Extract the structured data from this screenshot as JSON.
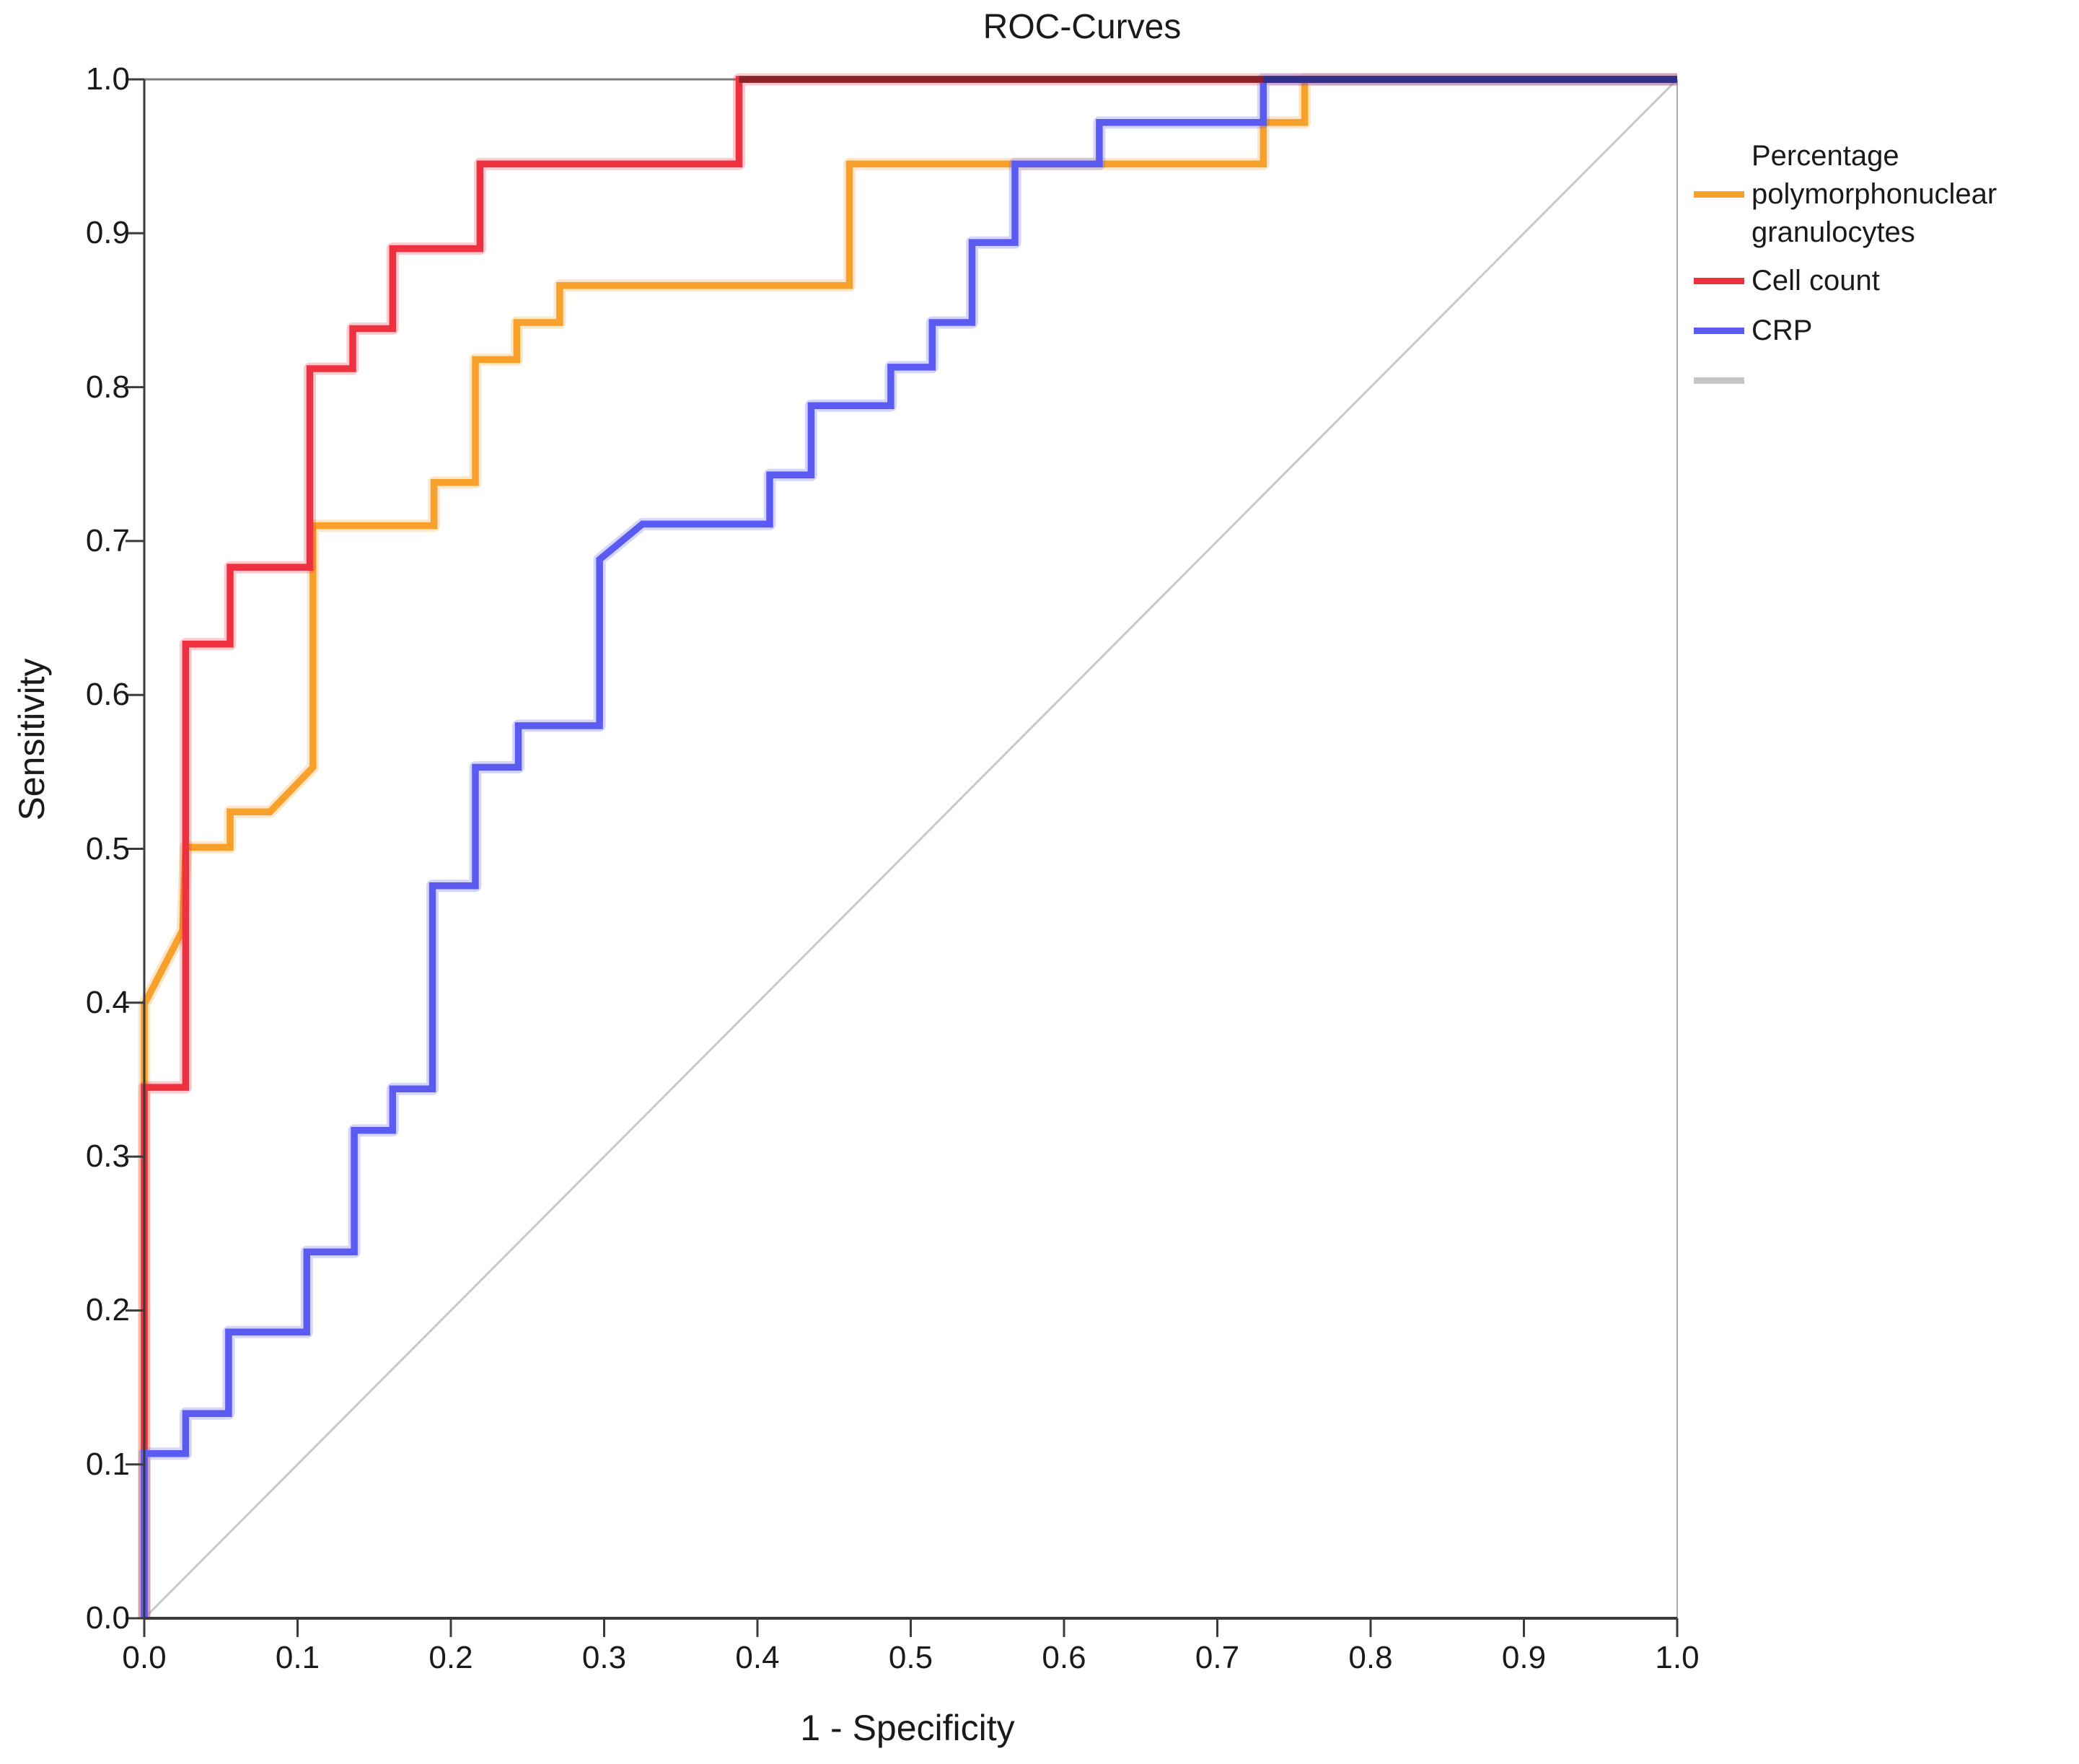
{
  "title": "ROC-Curves",
  "x_axis": {
    "label": "1 - Specificity",
    "ticks": [
      "0.0",
      "0.1",
      "0.2",
      "0.3",
      "0.4",
      "0.5",
      "0.6",
      "0.7",
      "0.8",
      "0.9",
      "1.0"
    ]
  },
  "y_axis": {
    "label": "Sensitivity",
    "ticks": [
      "0.0",
      "0.1",
      "0.2",
      "0.3",
      "0.4",
      "0.5",
      "0.6",
      "0.7",
      "0.8",
      "0.9",
      "1.0"
    ]
  },
  "legend": {
    "items": [
      {
        "id": "pmn",
        "label": "Percentage polymorphonuclear granulocytes",
        "color": "#F7A02B"
      },
      {
        "id": "cellcount",
        "label": "Cell count",
        "color": "#EE3140"
      },
      {
        "id": "crp",
        "label": "CRP",
        "color": "#5B5BF2"
      },
      {
        "id": "reference",
        "label": "",
        "color": "#C6C6C6"
      }
    ]
  },
  "colors": {
    "orange": "#F7A02B",
    "red": "#EE3140",
    "blue": "#5B5BF2",
    "reference_gray": "#C9C9C9",
    "axis": "#3B3B3B",
    "frame_top": "#7C7C7C",
    "frame_right": "#ABABAB",
    "top_overlap_red": "#8E222B",
    "top_overlap_blue": "#31318B"
  },
  "chart_data": {
    "type": "line",
    "subtype": "roc-step-curves",
    "title": "ROC-Curves",
    "xlabel": "1 - Specificity",
    "ylabel": "Sensitivity",
    "xlim": [
      0,
      1
    ],
    "ylim": [
      0,
      1
    ],
    "grid": false,
    "legend_position": "right",
    "reference_line": {
      "points": [
        [
          0,
          0
        ],
        [
          1,
          1
        ]
      ],
      "color": "#C9C9C9"
    },
    "series": [
      {
        "id": "pmn",
        "name": "Percentage polymorphonuclear granulocytes",
        "color": "#F7A02B",
        "points": [
          [
            0,
            0
          ],
          [
            0,
            0.399
          ],
          [
            0.025,
            0.447
          ],
          [
            0.027,
            0.501
          ],
          [
            0.056,
            0.501
          ],
          [
            0.056,
            0.524
          ],
          [
            0.082,
            0.524
          ],
          [
            0.11,
            0.553
          ],
          [
            0.11,
            0.71
          ],
          [
            0.189,
            0.71
          ],
          [
            0.189,
            0.738
          ],
          [
            0.216,
            0.738
          ],
          [
            0.216,
            0.818
          ],
          [
            0.243,
            0.818
          ],
          [
            0.243,
            0.842
          ],
          [
            0.271,
            0.842
          ],
          [
            0.271,
            0.866
          ],
          [
            0.46,
            0.866
          ],
          [
            0.46,
            0.945
          ],
          [
            0.73,
            0.945
          ],
          [
            0.73,
            0.972
          ],
          [
            0.757,
            0.972
          ],
          [
            0.757,
            1
          ],
          [
            1,
            1
          ]
        ]
      },
      {
        "id": "cellcount",
        "name": "Cell count",
        "color": "#EE3140",
        "points": [
          [
            0,
            0
          ],
          [
            0,
            0.345
          ],
          [
            0.027,
            0.345
          ],
          [
            0.027,
            0.633
          ],
          [
            0.056,
            0.633
          ],
          [
            0.056,
            0.683
          ],
          [
            0.108,
            0.683
          ],
          [
            0.108,
            0.812
          ],
          [
            0.136,
            0.812
          ],
          [
            0.136,
            0.838
          ],
          [
            0.162,
            0.838
          ],
          [
            0.162,
            0.89
          ],
          [
            0.219,
            0.89
          ],
          [
            0.219,
            0.945
          ],
          [
            0.388,
            0.945
          ],
          [
            0.388,
            1
          ],
          [
            1,
            1
          ]
        ]
      },
      {
        "id": "crp",
        "name": "CRP",
        "color": "#5B5BF2",
        "points": [
          [
            0,
            0
          ],
          [
            0,
            0.107
          ],
          [
            0.027,
            0.107
          ],
          [
            0.027,
            0.133
          ],
          [
            0.055,
            0.133
          ],
          [
            0.055,
            0.186
          ],
          [
            0.106,
            0.186
          ],
          [
            0.106,
            0.238
          ],
          [
            0.137,
            0.238
          ],
          [
            0.137,
            0.317
          ],
          [
            0.162,
            0.317
          ],
          [
            0.162,
            0.344
          ],
          [
            0.188,
            0.344
          ],
          [
            0.188,
            0.476
          ],
          [
            0.216,
            0.476
          ],
          [
            0.216,
            0.553
          ],
          [
            0.244,
            0.553
          ],
          [
            0.244,
            0.58
          ],
          [
            0.297,
            0.58
          ],
          [
            0.297,
            0.688
          ],
          [
            0.325,
            0.711
          ],
          [
            0.408,
            0.711
          ],
          [
            0.408,
            0.743
          ],
          [
            0.435,
            0.743
          ],
          [
            0.435,
            0.788
          ],
          [
            0.487,
            0.788
          ],
          [
            0.487,
            0.813
          ],
          [
            0.514,
            0.813
          ],
          [
            0.514,
            0.842
          ],
          [
            0.54,
            0.842
          ],
          [
            0.54,
            0.894
          ],
          [
            0.568,
            0.894
          ],
          [
            0.568,
            0.945
          ],
          [
            0.623,
            0.945
          ],
          [
            0.623,
            0.972
          ],
          [
            0.73,
            0.972
          ],
          [
            0.73,
            1
          ],
          [
            1,
            1
          ]
        ]
      }
    ]
  }
}
